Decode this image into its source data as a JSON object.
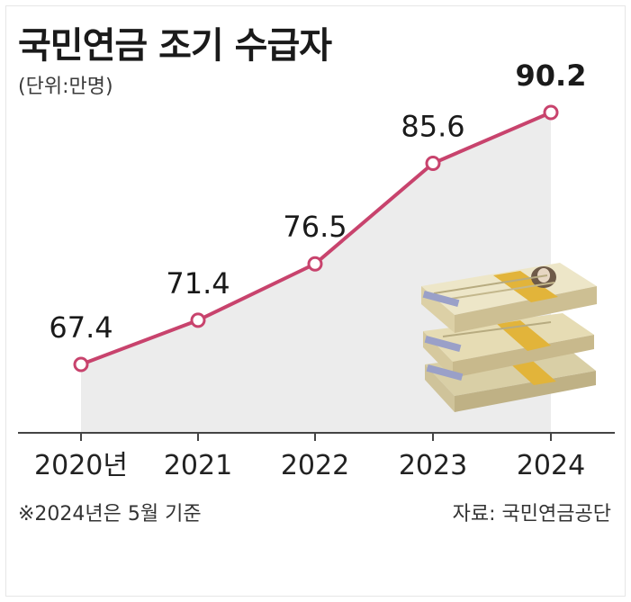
{
  "header": {
    "title": "국민연금 조기 수급자",
    "unit": "(단위:만명)"
  },
  "chart_data": {
    "type": "area",
    "categories": [
      "2020년",
      "2021",
      "2022",
      "2023",
      "2024"
    ],
    "values": [
      67.4,
      71.4,
      76.5,
      85.6,
      90.2
    ],
    "value_labels": [
      "67.4",
      "71.4",
      "76.5",
      "85.6",
      "90.2"
    ],
    "title": "국민연금 조기 수급자",
    "ylabel": "",
    "xlabel": "",
    "grid": false,
    "legend": "none"
  },
  "footer": {
    "note": "※2024년은 5월 기준",
    "source": "자료: 국민연금공단"
  },
  "colors": {
    "line": "#c8436d",
    "fill": "#ececec",
    "axis": "#444444",
    "text": "#1a1a1a",
    "money_band": "#e2b43a",
    "money_bill": "#ede6c8"
  },
  "decoration": {
    "icon": "money-stack-icon"
  }
}
